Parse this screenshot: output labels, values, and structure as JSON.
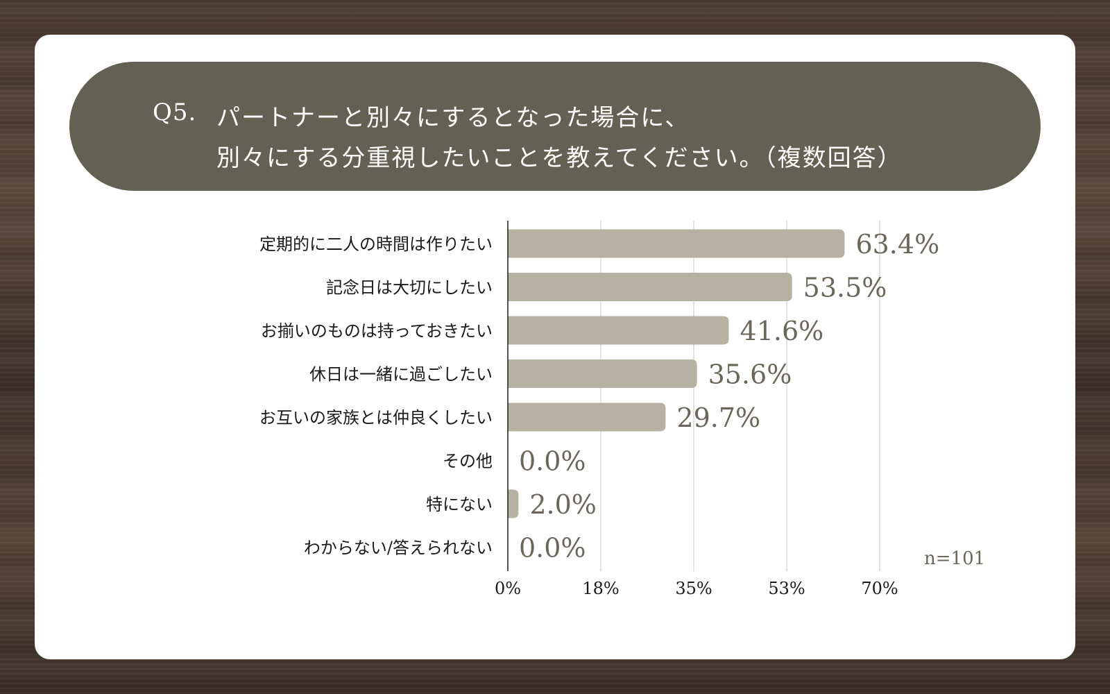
{
  "title": {
    "q_number": "Q5.",
    "line1": "パートナーと別々にするとなった場合に、",
    "line2": "別々にする分重視したいことを教えてください。（複数回答）"
  },
  "sample_size": "n=101",
  "colors": {
    "bar": "#b5b1a3",
    "title_bg": "#636054",
    "value_text": "#6a665b",
    "grid": "#c8c8c8",
    "axis": "#1a1a1a"
  },
  "chart_data": {
    "type": "bar",
    "orientation": "horizontal",
    "title": "",
    "xlabel": "",
    "ylabel": "",
    "xlim": [
      0,
      70
    ],
    "grid": true,
    "categories": [
      "定期的に二人の時間は作りたい",
      "記念日は大切にしたい",
      "お揃いのものは持っておきたい",
      "休日は一緒に過ごしたい",
      "お互いの家族とは仲良くしたい",
      "その他",
      "特にない",
      "わからない/答えられない"
    ],
    "values": [
      63.4,
      53.5,
      41.6,
      35.6,
      29.7,
      0.0,
      2.0,
      0.0
    ],
    "value_labels": [
      "63.4%",
      "53.5%",
      "41.6%",
      "35.6%",
      "29.7%",
      "0.0%",
      "2.0%",
      "0.0%"
    ],
    "ticks": [
      0,
      17.5,
      35,
      52.5,
      70
    ],
    "tick_labels": [
      "0%",
      "18%",
      "35%",
      "53%",
      "70%"
    ]
  }
}
